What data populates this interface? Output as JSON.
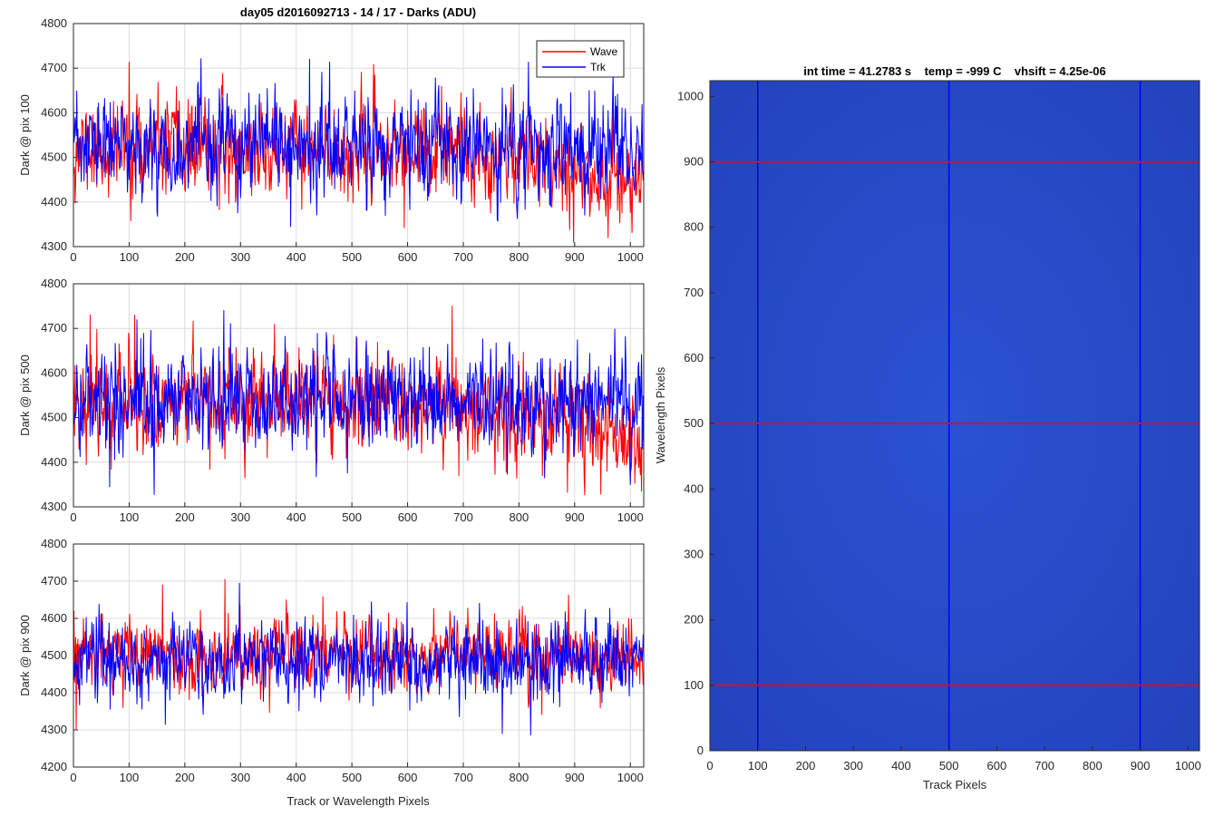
{
  "chart_data": [
    {
      "type": "line",
      "title": "day05 d2016092713 - 14 / 17 - Darks (ADU)",
      "xlabel": "",
      "ylabel": "Dark @ pix 100",
      "xlim": [
        0,
        1024
      ],
      "ylim": [
        4300,
        4800
      ],
      "xticks": [
        0,
        100,
        200,
        300,
        400,
        500,
        600,
        700,
        800,
        900,
        1000
      ],
      "yticks": [
        4300,
        4400,
        4500,
        4600,
        4700,
        4800
      ],
      "grid": true,
      "legend": {
        "position": "top-right",
        "entries": [
          "Wave",
          "Trk"
        ]
      },
      "series": [
        {
          "name": "Wave",
          "color": "#ff0000",
          "mean": 4510,
          "noise": 52,
          "seed": 11,
          "trend": [
            [
              0,
              4520
            ],
            [
              500,
              4510
            ],
            [
              850,
              4510
            ],
            [
              900,
              4470
            ],
            [
              1024,
              4450
            ]
          ],
          "spikes": [
            [
              100,
              4713
            ],
            [
              898,
              4310
            ],
            [
              960,
              4320
            ]
          ]
        },
        {
          "name": "Trk",
          "color": "#0000ff",
          "mean": 4525,
          "noise": 55,
          "seed": 23,
          "trend": [
            [
              0,
              4525
            ],
            [
              1024,
              4515
            ]
          ],
          "spikes": [
            [
              424,
              4720
            ],
            [
              390,
              4345
            ]
          ]
        }
      ]
    },
    {
      "type": "line",
      "title": "",
      "xlabel": "",
      "ylabel": "Dark @ pix 500",
      "xlim": [
        0,
        1024
      ],
      "ylim": [
        4300,
        4800
      ],
      "xticks": [
        0,
        100,
        200,
        300,
        400,
        500,
        600,
        700,
        800,
        900,
        1000
      ],
      "yticks": [
        4300,
        4400,
        4500,
        4600,
        4700,
        4800
      ],
      "grid": true,
      "series": [
        {
          "name": "Wave",
          "color": "#ff0000",
          "mean": 4530,
          "noise": 55,
          "seed": 37,
          "trend": [
            [
              0,
              4540
            ],
            [
              500,
              4540
            ],
            [
              800,
              4510
            ],
            [
              1024,
              4450
            ]
          ],
          "spikes": [
            [
              30,
              4730
            ],
            [
              110,
              4730
            ],
            [
              680,
              4750
            ],
            [
              1020,
              4335
            ]
          ]
        },
        {
          "name": "Trk",
          "color": "#0000ff",
          "mean": 4545,
          "noise": 58,
          "seed": 41,
          "trend": [
            [
              0,
              4545
            ],
            [
              1024,
              4540
            ]
          ],
          "spikes": [
            [
              270,
              4740
            ],
            [
              65,
              4345
            ],
            [
              1000,
              4350
            ]
          ]
        }
      ]
    },
    {
      "type": "line",
      "title": "",
      "xlabel": "Track or Wavelength Pixels",
      "ylabel": "Dark @ pix 900",
      "xlim": [
        0,
        1024
      ],
      "ylim": [
        4200,
        4800
      ],
      "xticks": [
        0,
        100,
        200,
        300,
        400,
        500,
        600,
        700,
        800,
        900,
        1000
      ],
      "yticks": [
        4200,
        4300,
        4400,
        4500,
        4600,
        4700,
        4800
      ],
      "grid": true,
      "series": [
        {
          "name": "Wave",
          "color": "#ff0000",
          "mean": 4510,
          "noise": 48,
          "seed": 53,
          "trend": [
            [
              0,
              4500
            ],
            [
              1024,
              4505
            ]
          ],
          "spikes": [
            [
              272,
              4705
            ],
            [
              160,
              4690
            ],
            [
              5,
              4300
            ]
          ]
        },
        {
          "name": "Trk",
          "color": "#0000ff",
          "mean": 4490,
          "noise": 52,
          "seed": 67,
          "trend": [
            [
              0,
              4490
            ],
            [
              1024,
              4480
            ]
          ],
          "spikes": [
            [
              770,
              4290
            ],
            [
              165,
              4315
            ]
          ]
        }
      ]
    },
    {
      "type": "heatmap",
      "title": "int time = 41.2783 s    temp = -999 C    vhsift = 4.25e-06",
      "xlabel": "Track Pixels",
      "ylabel": "Wavelength Pixels",
      "xlim": [
        0,
        1024
      ],
      "ylim": [
        0,
        1024
      ],
      "xticks": [
        0,
        100,
        200,
        300,
        400,
        500,
        600,
        700,
        800,
        900,
        1000
      ],
      "yticks": [
        0,
        100,
        200,
        300,
        400,
        500,
        600,
        700,
        800,
        900,
        1000
      ],
      "image_color": "#2449c8",
      "marker_lines": [
        {
          "orientation": "vertical",
          "value": 100,
          "color": "#0000ff"
        },
        {
          "orientation": "vertical",
          "value": 500,
          "color": "#0000ff"
        },
        {
          "orientation": "vertical",
          "value": 900,
          "color": "#0000ff"
        },
        {
          "orientation": "horizontal",
          "value": 100,
          "color": "#ff0000"
        },
        {
          "orientation": "horizontal",
          "value": 500,
          "color": "#ff0000"
        },
        {
          "orientation": "horizontal",
          "value": 900,
          "color": "#ff0000"
        }
      ]
    }
  ]
}
